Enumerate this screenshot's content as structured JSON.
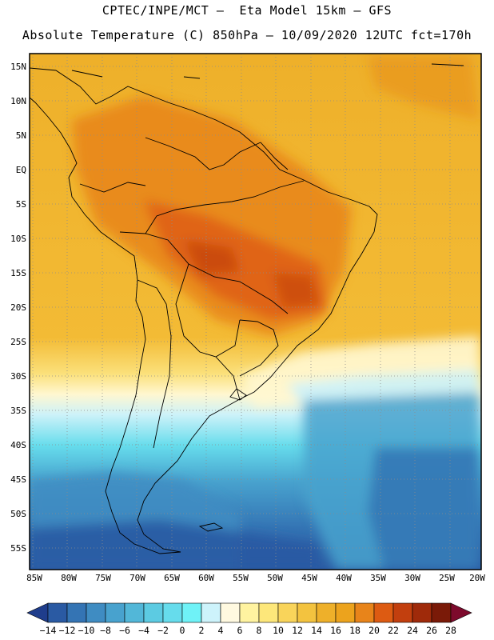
{
  "header": {
    "line1": "CPTEC/INPE/MCT –  Eta Model 15km – GFS",
    "line2": "Absolute Temperature (C) 850hPa – 10/09/2020 12UTC fct=170h"
  },
  "map": {
    "lat_labels": [
      "15N",
      "10N",
      "5N",
      "EQ",
      "5S",
      "10S",
      "15S",
      "20S",
      "25S",
      "30S",
      "35S",
      "40S",
      "45S",
      "50S",
      "55S"
    ],
    "lon_labels": [
      "85W",
      "80W",
      "75W",
      "70W",
      "65W",
      "60W",
      "55W",
      "50W",
      "45W",
      "40W",
      "35W",
      "30W",
      "25W",
      "20W"
    ],
    "lat_range": [
      17,
      -58
    ],
    "lon_range": [
      -85.5,
      -20.5
    ]
  },
  "colorbar": {
    "labels": [
      "-14",
      "-12",
      "-10",
      "-8",
      "-6",
      "-4",
      "-2",
      "0",
      "2",
      "4",
      "6",
      "8",
      "10",
      "12",
      "14",
      "16",
      "18",
      "20",
      "22",
      "24",
      "26",
      "28"
    ],
    "colors": [
      "#1f3d8c",
      "#2a5aa3",
      "#3474b4",
      "#3f8cc2",
      "#48a2ce",
      "#52b7d8",
      "#5ccbe2",
      "#66dcec",
      "#6ff2f7",
      "#cdf3fb",
      "#fff9e0",
      "#fff3a0",
      "#fde77a",
      "#f9d45a",
      "#f3c33f",
      "#eeb02a",
      "#eca31d",
      "#e8841a",
      "#dd5b12",
      "#c23f0e",
      "#9f2a0a",
      "#7a1a08",
      "#7d0a2c"
    ]
  }
}
